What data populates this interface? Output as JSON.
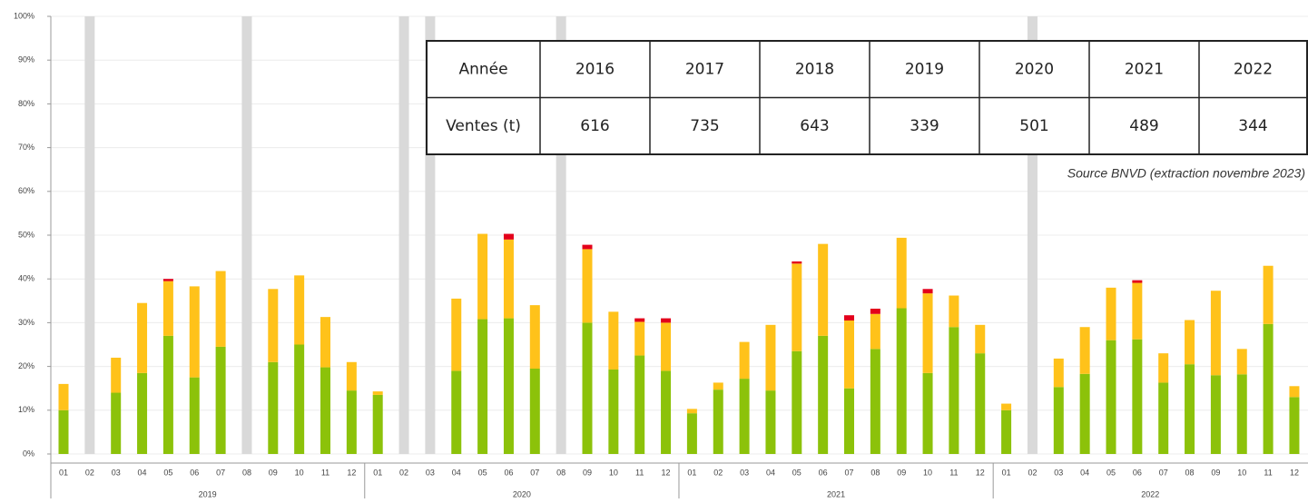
{
  "chart_data": {
    "type": "stacked_bar",
    "categories": [
      "01",
      "02",
      "03",
      "04",
      "05",
      "06",
      "07",
      "08",
      "09",
      "10",
      "11",
      "12",
      "01",
      "02",
      "03",
      "04",
      "05",
      "06",
      "07",
      "08",
      "09",
      "10",
      "11",
      "12",
      "01",
      "02",
      "03",
      "04",
      "05",
      "06",
      "07",
      "08",
      "09",
      "10",
      "11",
      "12",
      "01",
      "02",
      "03",
      "04",
      "05",
      "06",
      "07",
      "08",
      "09",
      "10",
      "11",
      "12"
    ],
    "x_groups": [
      "2019",
      "2020",
      "2021",
      "2022"
    ],
    "series": [
      {
        "color": "#8cc20a",
        "values": [
          10,
          null,
          14,
          18.5,
          27,
          17.5,
          24.5,
          null,
          21,
          25,
          19.8,
          14.5,
          13.5,
          null,
          null,
          19,
          30.8,
          31,
          19.5,
          null,
          30,
          19.3,
          22.5,
          19,
          9.3,
          14.7,
          17.2,
          14.5,
          23.5,
          27,
          15,
          24,
          33.3,
          18.5,
          29,
          23,
          10,
          null,
          15.3,
          18.3,
          26,
          26.2,
          16.3,
          20.5,
          18,
          18.2,
          29.7,
          13
        ]
      },
      {
        "color": "#ffc21a",
        "values": [
          6,
          null,
          8,
          16,
          12.5,
          20.8,
          17.3,
          null,
          16.7,
          15.8,
          11.5,
          6.5,
          0.8,
          null,
          null,
          16.5,
          19.5,
          18,
          14.5,
          null,
          16.8,
          13.2,
          7.7,
          11,
          1,
          1.6,
          8.4,
          15,
          20,
          21,
          15.5,
          8,
          16.1,
          18.2,
          7.2,
          6.5,
          1.5,
          null,
          6.5,
          10.7,
          12,
          12.9,
          6.7,
          10.1,
          19.3,
          5.8,
          13.3,
          2.5
        ]
      },
      {
        "color": "#e3001b",
        "values": [
          0,
          null,
          0,
          0,
          0.5,
          0,
          0,
          null,
          0,
          0,
          0,
          0,
          0,
          null,
          null,
          0,
          0,
          1.3,
          0,
          null,
          1,
          0,
          0.8,
          1,
          0,
          0,
          0,
          0,
          0.5,
          0,
          1.2,
          1.2,
          0,
          1,
          0,
          0,
          0,
          null,
          0,
          0,
          0,
          0.6,
          0,
          0,
          0,
          0,
          0,
          0
        ]
      }
    ],
    "missing_color": "#d9d9d9",
    "ylim": [
      0,
      100
    ],
    "yticks": [
      {
        "value": 0,
        "label": "0%"
      },
      {
        "value": 10,
        "label": "10%"
      },
      {
        "value": 20,
        "label": "20%"
      },
      {
        "value": 30,
        "label": "30%"
      },
      {
        "value": 40,
        "label": "40%"
      },
      {
        "value": 50,
        "label": "50%"
      },
      {
        "value": 60,
        "label": "60%"
      },
      {
        "value": 70,
        "label": "70%"
      },
      {
        "value": 80,
        "label": "80%"
      },
      {
        "value": 90,
        "label": "90%"
      },
      {
        "value": 100,
        "label": "100%"
      }
    ],
    "grid": true
  },
  "table": {
    "rows": [
      [
        "Année",
        "2016",
        "2017",
        "2018",
        "2019",
        "2020",
        "2021",
        "2022"
      ],
      [
        "Ventes (t)",
        "616",
        "735",
        "643",
        "339",
        "501",
        "489",
        "344"
      ]
    ]
  },
  "source": "Source BNVD (extraction novembre 2023)"
}
